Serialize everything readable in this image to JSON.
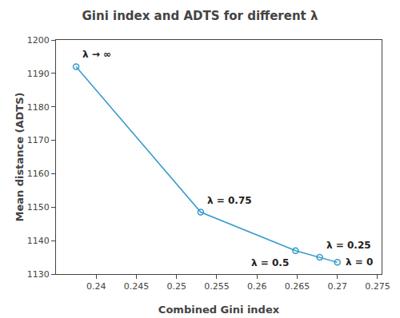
{
  "chart_data": {
    "type": "line",
    "title": "Gini index and ADTS for different λ",
    "xlabel": "Combined Gini index",
    "ylabel": "Mean distance (ADTS)",
    "x": [
      0.2375,
      0.253,
      0.2648,
      0.2678,
      0.27
    ],
    "values": [
      1192.0,
      1148.5,
      1137.0,
      1135.0,
      1133.5
    ],
    "color": "#3399CC",
    "marker": "open_circle",
    "xlim": [
      0.235,
      0.2755
    ],
    "ylim": [
      1130,
      1200
    ],
    "xticks": [
      0.24,
      0.245,
      0.25,
      0.255,
      0.26,
      0.265,
      0.27,
      0.275
    ],
    "yticks": [
      1130,
      1140,
      1150,
      1160,
      1170,
      1180,
      1190,
      1200
    ],
    "grid": false,
    "annotations": [
      {
        "text": "λ → ∞",
        "x": 0.2375,
        "y": 1192.0
      },
      {
        "text": "λ = 0.75",
        "x": 0.253,
        "y": 1148.5
      },
      {
        "text": "λ = 0.5",
        "x": 0.2648,
        "y": 1137.0
      },
      {
        "text": "λ = 0.25",
        "x": 0.2678,
        "y": 1135.0
      },
      {
        "text": "λ = 0",
        "x": 0.27,
        "y": 1133.5
      }
    ]
  }
}
